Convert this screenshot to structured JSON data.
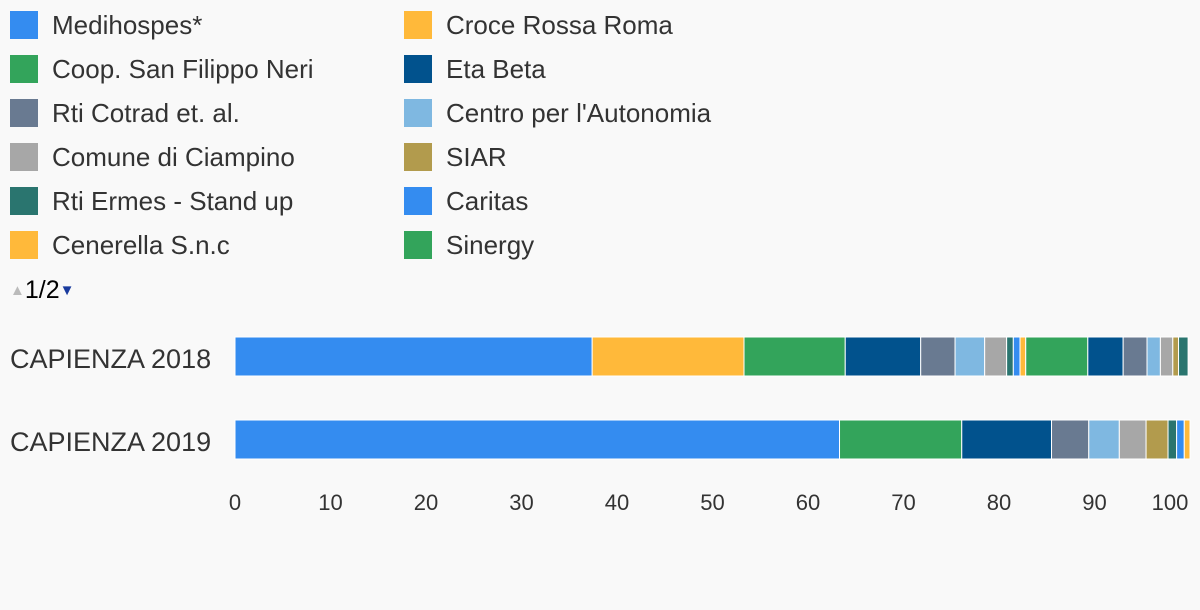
{
  "legend": {
    "pager_text": "1/2",
    "up_icon": "triangle-up-icon",
    "down_icon": "triangle-down-icon"
  },
  "chart_data": {
    "type": "bar",
    "orientation": "horizontal",
    "stacked": true,
    "categories": [
      "CAPIENZA 2018",
      "CAPIENZA 2019"
    ],
    "xlim": [
      0,
      100
    ],
    "xticks": [
      0,
      10,
      20,
      30,
      40,
      50,
      60,
      70,
      80,
      90,
      100
    ],
    "grid": false,
    "legend_position": "top",
    "series": [
      {
        "name": "Medihospes*",
        "color": "#348cf0",
        "values": [
          37.4,
          63.3
        ]
      },
      {
        "name": "Croce Rossa Roma",
        "color": "#ffb93a",
        "values": [
          15.9,
          0
        ]
      },
      {
        "name": "Coop. San Filippo Neri",
        "color": "#33a45b",
        "values": [
          10.6,
          12.8
        ]
      },
      {
        "name": "Eta Beta",
        "color": "#01528d",
        "values": [
          7.9,
          9.4
        ]
      },
      {
        "name": "Rti Cotrad et. al.",
        "color": "#697a91",
        "values": [
          3.6,
          3.9
        ]
      },
      {
        "name": "Centro per l'Autonomia",
        "color": "#7fb8e1",
        "values": [
          3.1,
          3.2
        ]
      },
      {
        "name": "Comune di Ciampino",
        "color": "#a7a7a7",
        "values": [
          2.3,
          2.8
        ]
      },
      {
        "name": "SIAR",
        "color": "#b29b4d",
        "values": [
          0,
          2.3
        ]
      },
      {
        "name": "Rti Ermes - Stand up",
        "color": "#2a756f",
        "values": [
          0.7,
          0.9
        ]
      },
      {
        "name": "Caritas",
        "color": "#348cf0",
        "values": [
          0.7,
          0.8
        ]
      },
      {
        "name": "Cenerella S.n.c",
        "color": "#ffb93a",
        "values": [
          0.6,
          0.6
        ]
      },
      {
        "name": "Sinergy",
        "color": "#33a45b",
        "values": [
          6.5,
          0
        ]
      },
      {
        "name": "",
        "color": "#01528d",
        "values": [
          3.7,
          0
        ]
      },
      {
        "name": "",
        "color": "#697a91",
        "values": [
          2.5,
          0
        ]
      },
      {
        "name": "",
        "color": "#7fb8e1",
        "values": [
          1.4,
          0
        ]
      },
      {
        "name": "",
        "color": "#a7a7a7",
        "values": [
          1.3,
          0
        ]
      },
      {
        "name": "",
        "color": "#b29b4d",
        "values": [
          0.6,
          0
        ]
      },
      {
        "name": "",
        "color": "#2a756f",
        "values": [
          1.0,
          0
        ]
      }
    ]
  }
}
